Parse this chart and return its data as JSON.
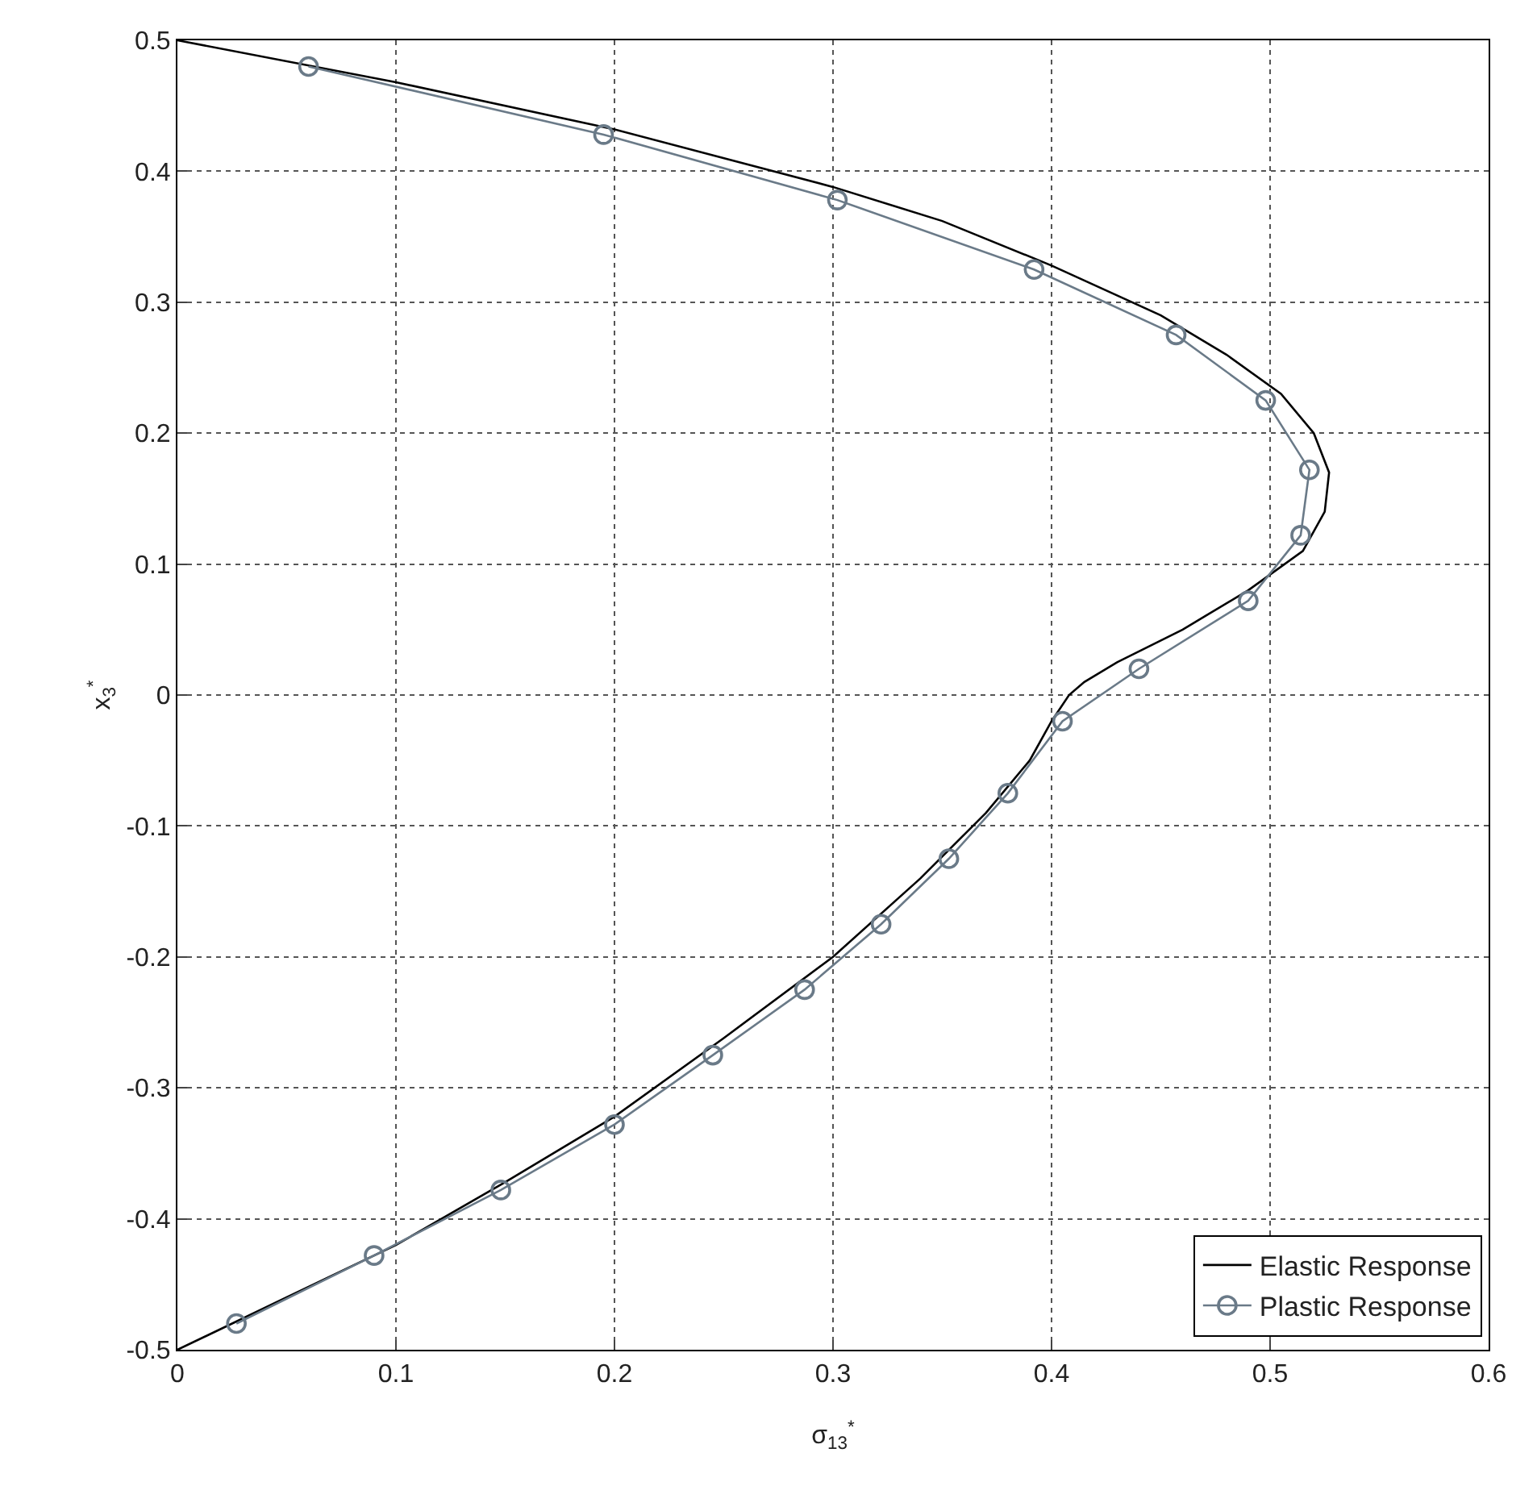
{
  "chart_data": {
    "type": "line",
    "xlabel": "σ$_{13}$$^{*}$",
    "ylabel": "x$_{3}$$^{*}$",
    "xlim": [
      0,
      0.6
    ],
    "ylim": [
      -0.5,
      0.5
    ],
    "xticks": [
      0,
      0.1,
      0.2,
      0.3,
      0.4,
      0.5,
      0.6
    ],
    "yticks": [
      -0.5,
      -0.4,
      -0.3,
      -0.2,
      -0.1,
      0,
      0.1,
      0.2,
      0.3,
      0.4,
      0.5
    ],
    "grid": true,
    "legend": "bottom right",
    "series": [
      {
        "name": "Elastic Response",
        "color": "#000000",
        "marker": "none",
        "x": [
          0,
          0.1,
          0.2,
          0.3,
          0.35,
          0.4,
          0.45,
          0.48,
          0.505,
          0.52,
          0.527,
          0.525,
          0.515,
          0.49,
          0.46,
          0.43,
          0.415,
          0.408,
          0.4,
          0.39,
          0.37,
          0.34,
          0.3,
          0.25,
          0.2,
          0.15,
          0.1,
          0.05,
          0
        ],
        "values": [
          0.5,
          0.468,
          0.432,
          0.388,
          0.362,
          0.328,
          0.29,
          0.26,
          0.23,
          0.2,
          0.17,
          0.14,
          0.11,
          0.08,
          0.05,
          0.025,
          0.01,
          0,
          -0.02,
          -0.05,
          -0.09,
          -0.14,
          -0.2,
          -0.262,
          -0.322,
          -0.372,
          -0.42,
          -0.46,
          -0.5
        ]
      },
      {
        "name": "Plastic Response",
        "color": "#6a7a88",
        "marker": "circle",
        "x": [
          0.06,
          0.195,
          0.302,
          0.392,
          0.457,
          0.498,
          0.518,
          0.514,
          0.49,
          0.44,
          0.405,
          0.38,
          0.353,
          0.322,
          0.287,
          0.245,
          0.2,
          0.148,
          0.09,
          0.027
        ],
        "values": [
          0.48,
          0.428,
          0.378,
          0.325,
          0.275,
          0.225,
          0.172,
          0.122,
          0.072,
          0.02,
          -0.02,
          -0.075,
          -0.125,
          -0.175,
          -0.225,
          -0.275,
          -0.328,
          -0.378,
          -0.428,
          -0.48
        ]
      }
    ]
  }
}
